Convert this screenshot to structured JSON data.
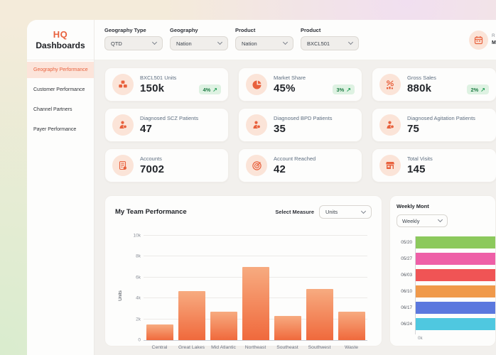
{
  "app": {
    "logo_top": "HQ",
    "logo_bottom": "Dashboards"
  },
  "sidebar": {
    "items": [
      {
        "label": "Geography Performance",
        "active": true
      },
      {
        "label": "Customer Performance",
        "active": false
      },
      {
        "label": "Channel Partners",
        "active": false
      },
      {
        "label": "Payer Performance",
        "active": false
      }
    ]
  },
  "filters": [
    {
      "label": "Geography Type",
      "value": "QTD"
    },
    {
      "label": "Geography",
      "value": "Nation"
    },
    {
      "label": "Product",
      "value": "Nation"
    },
    {
      "label": "Product",
      "value": "BXCL501"
    }
  ],
  "header_right": {
    "icon": "calendar-icon",
    "partial_line1": "R",
    "partial_line2": "M"
  },
  "kpi_cards": [
    {
      "icon": "cubes-icon",
      "label": "BXCL501 Units",
      "value": "150k",
      "badge": "4%",
      "trend": "up"
    },
    {
      "icon": "pie-chart-icon",
      "label": "Market Share",
      "value": "45%",
      "badge": "3%",
      "trend": "up"
    },
    {
      "icon": "percent-chart-icon",
      "label": "Gross Sales",
      "value": "880k",
      "badge": "2%",
      "trend": "up"
    },
    {
      "icon": "patient-icon",
      "label": "Diagnosed SCZ Patients",
      "value": "47"
    },
    {
      "icon": "patient-icon",
      "label": "Diagnosed BPD Patients",
      "value": "35"
    },
    {
      "icon": "patient-icon",
      "label": "Diagnosed Agitation Patients",
      "value": "75"
    },
    {
      "icon": "calculator-icon",
      "label": "Accounts",
      "value": "7002"
    },
    {
      "icon": "target-icon",
      "label": "Account Reached",
      "value": "42"
    },
    {
      "icon": "store-icon",
      "label": "Total Visits",
      "value": "145"
    }
  ],
  "team_section": {
    "title": "My Team Performance",
    "select_measure_label": "Select Measure",
    "measure": "Units"
  },
  "weekly_section": {
    "title": "Weekly Mont",
    "period": "Weekly"
  },
  "chart_data": [
    {
      "type": "bar",
      "title": "My Team Performance",
      "xlabel": "",
      "ylabel": "Units",
      "ylim": [
        0,
        10000
      ],
      "yticks": [
        "0",
        "2k",
        "4k",
        "6k",
        "8k",
        "10k"
      ],
      "grid": true,
      "legend": false,
      "categories": [
        "Central",
        "Great Lakes",
        "Mid Atlantic",
        "Northeast",
        "Southeast",
        "Southwest",
        "Waste"
      ],
      "values": [
        1500,
        4700,
        2700,
        7000,
        2300,
        4900,
        2700
      ],
      "bar_color_top": "#f7ab80",
      "bar_color_bottom": "#f0693c"
    },
    {
      "type": "bar",
      "orientation": "horizontal",
      "title": "Weekly Mont",
      "categories": [
        "05/20",
        "05/27",
        "06/03",
        "06/10",
        "06/17",
        "06/24"
      ],
      "colors": [
        "#8cc95c",
        "#ee5fa7",
        "#f05455",
        "#f0994a",
        "#5b78de",
        "#4fc8e0"
      ],
      "values_visible": false,
      "x_axis_start_label": "0k"
    }
  ],
  "colors": {
    "accent": "#e8613d",
    "active_nav_bg": "#fce4da",
    "icon_circle_bg": "#fbe4d8",
    "badge_bg": "#def2e2",
    "badge_text": "#1e7c44"
  }
}
